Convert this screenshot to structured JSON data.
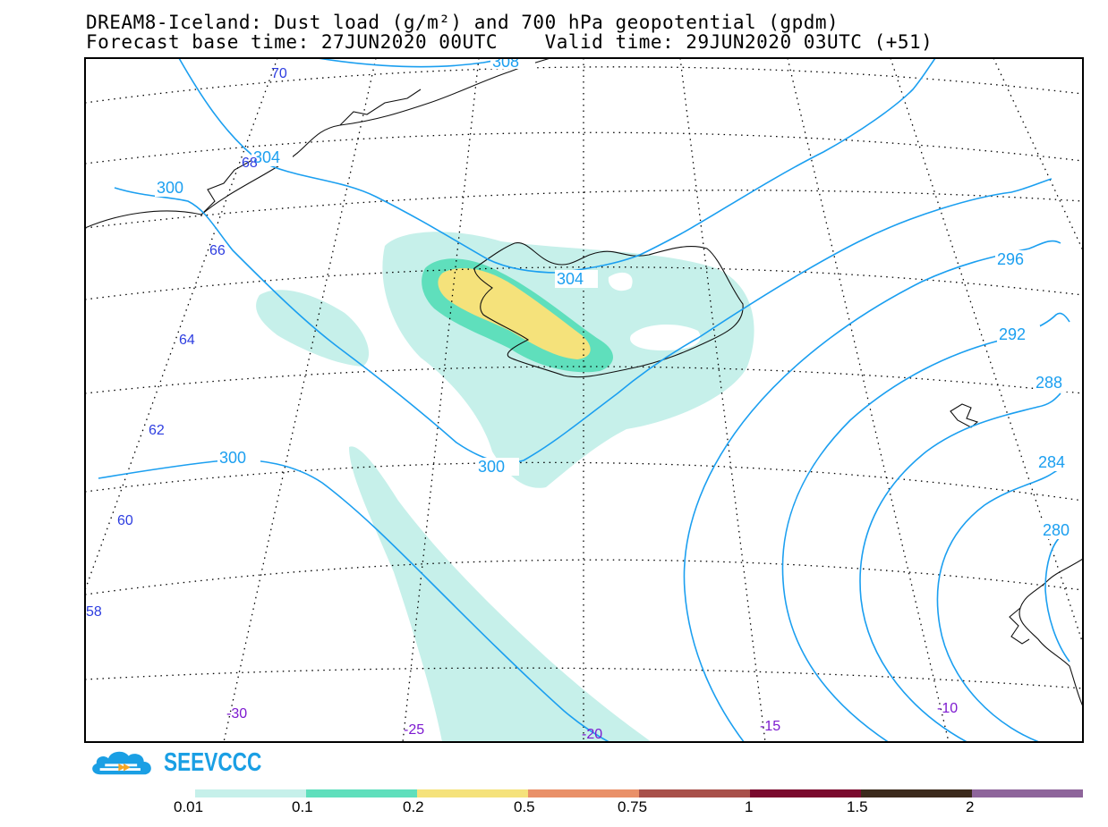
{
  "title": {
    "line1": "DREAM8-Iceland: Dust load (g/m²) and 700 hPa geopotential (gpdm)",
    "line2": "Forecast base time: 27JUN2020 00UTC    Valid time: 29JUN2020 03UTC (+51)"
  },
  "map": {
    "lat_labels": [
      "70",
      "68",
      "66",
      "64",
      "62",
      "60",
      "58"
    ],
    "lon_labels": [
      "-30",
      "-25",
      "-20",
      "-15",
      "-10"
    ],
    "contour_labels": [
      "308",
      "304",
      "304",
      "300",
      "300",
      "300",
      "296",
      "292",
      "288",
      "284",
      "280"
    ],
    "colors": {
      "contour": "#1b9ff0",
      "lat_label": "#2d3de0",
      "lon_label": "#7d1ad0"
    }
  },
  "logo": {
    "text": "SEEVCCC",
    "color": "#1a9fe4"
  },
  "colorbar": {
    "colors": [
      "#c6f0ea",
      "#5fdfbc",
      "#f5e27b",
      "#e99068",
      "#a8504a",
      "#7a0a2e",
      "#3c2a1c",
      "#8e659b"
    ],
    "labels": [
      "0.01",
      "0.1",
      "0.2",
      "0.5",
      "0.75",
      "1",
      "1.5",
      "2"
    ]
  }
}
